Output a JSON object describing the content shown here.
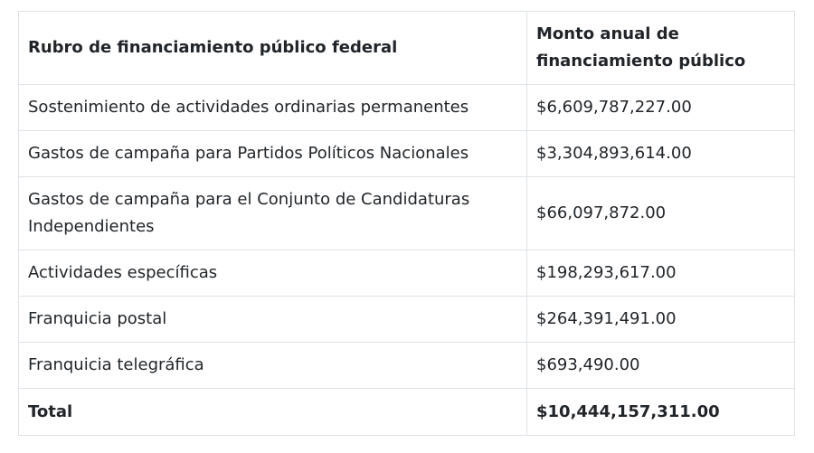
{
  "table": {
    "headers": [
      "Rubro de financiamiento público federal",
      "Monto anual de financiamiento público"
    ],
    "rows": [
      {
        "rubro": "Sostenimiento de actividades ordinarias permanentes",
        "monto": "$6,609,787,227.00"
      },
      {
        "rubro": "Gastos de campaña para Partidos Políticos Nacionales",
        "monto": "$3,304,893,614.00"
      },
      {
        "rubro": "Gastos de campaña para el Conjunto de Candidaturas Independientes",
        "monto": "$66,097,872.00"
      },
      {
        "rubro": "Actividades específicas",
        "monto": "$198,293,617.00"
      },
      {
        "rubro": "Franquicia postal",
        "monto": "$264,391,491.00"
      },
      {
        "rubro": "Franquicia telegráfica",
        "monto": "$693,490.00"
      }
    ],
    "total": {
      "label": "Total",
      "monto": "$10,444,157,311.00"
    }
  }
}
